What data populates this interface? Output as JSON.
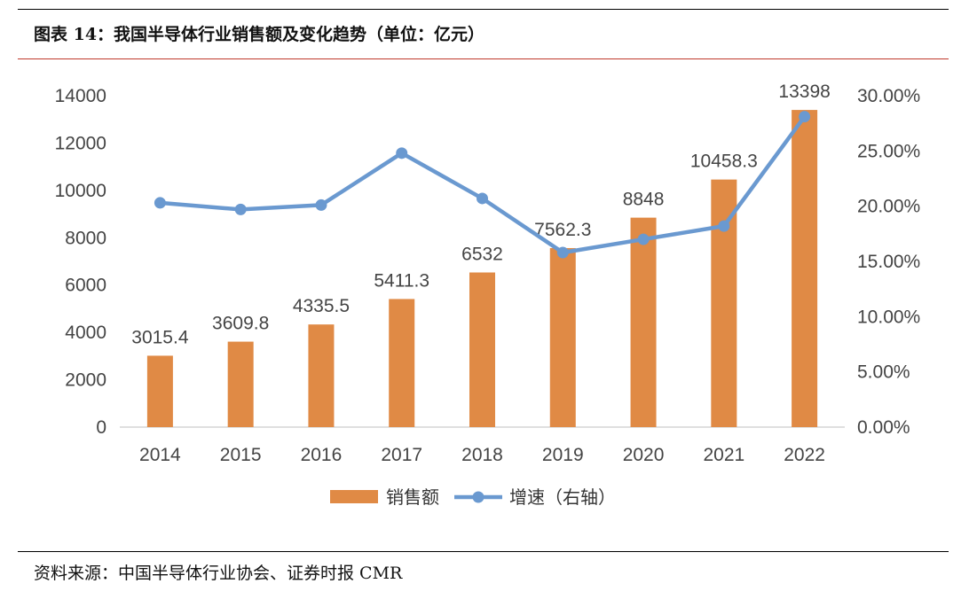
{
  "figure": {
    "title": "图表 14：我国半导体行业销售额及变化趋势（单位：亿元）",
    "source": "资料来源：中国半导体行业协会、证券时报 CMR"
  },
  "chart_data": {
    "type": "bar",
    "categories": [
      "2014",
      "2015",
      "2016",
      "2017",
      "2018",
      "2019",
      "2020",
      "2021",
      "2022"
    ],
    "series": [
      {
        "name": "销售额",
        "type": "bar",
        "axis": "left",
        "color": "#e08a45",
        "values": [
          3015.4,
          3609.8,
          4335.5,
          5411.3,
          6532,
          7562.3,
          8848,
          10458.3,
          13398
        ],
        "data_labels": [
          "3015.4",
          "3609.8",
          "4335.5",
          "5411.3",
          "6532",
          "7562.3",
          "8848",
          "10458.3",
          "13398"
        ]
      },
      {
        "name": "增速（右轴）",
        "type": "line",
        "axis": "right",
        "color": "#6a99d0",
        "values": [
          0.203,
          0.197,
          0.201,
          0.248,
          0.207,
          0.158,
          0.17,
          0.182,
          0.281
        ]
      }
    ],
    "y_left": {
      "ylim": [
        0,
        14000
      ],
      "ticks": [
        0,
        2000,
        4000,
        6000,
        8000,
        10000,
        12000,
        14000
      ],
      "tick_labels": [
        "0",
        "2000",
        "4000",
        "6000",
        "8000",
        "10000",
        "12000",
        "14000"
      ]
    },
    "y_right": {
      "ylim": [
        0,
        0.3
      ],
      "ticks": [
        0,
        0.05,
        0.1,
        0.15,
        0.2,
        0.25,
        0.3
      ],
      "tick_labels": [
        "0.00%",
        "5.00%",
        "10.00%",
        "15.00%",
        "20.00%",
        "25.00%",
        "30.00%"
      ]
    },
    "grid": false,
    "legend": {
      "position": "bottom",
      "entries": [
        "销售额",
        "增速（右轴）"
      ]
    }
  }
}
